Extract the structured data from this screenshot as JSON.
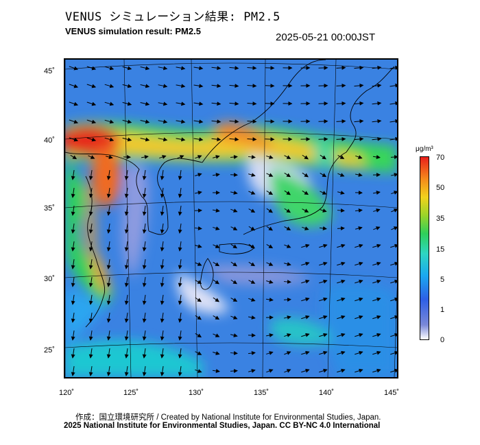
{
  "header": {
    "title_ja": "VENUS シミュレーション結果: PM2.5",
    "title_en": "VENUS simulation result: PM2.5",
    "timestamp": "2025-05-21 00:00JST"
  },
  "map": {
    "lat_labels": [
      "45˚",
      "40˚",
      "35˚",
      "30˚",
      "25˚"
    ],
    "lon_labels": [
      "120˚",
      "125˚",
      "130˚",
      "135˚",
      "140˚",
      "145˚"
    ],
    "layers": [
      "PM2.5 concentration field",
      "wind vectors",
      "coastlines",
      "graticule"
    ]
  },
  "colorbar": {
    "unit": "μg/m³",
    "tick_labels": [
      "70",
      "50",
      "35",
      "15",
      "5",
      "1",
      "0"
    ],
    "colors": [
      "#ffffff",
      "#7a88d8",
      "#2e5fe6",
      "#1aa8f0",
      "#2ed6c2",
      "#2fcf5a",
      "#9ad42a",
      "#f2d21c",
      "#f58a1c",
      "#e8201c"
    ]
  },
  "footer": {
    "credit_line_1": "作成：国立環境研究所 / Created by National Institute for Environmental Studies, Japan.",
    "credit_line_2": "2025 National Institute for Environmental Studies, Japan. CC BY-NC 4.0 International"
  }
}
